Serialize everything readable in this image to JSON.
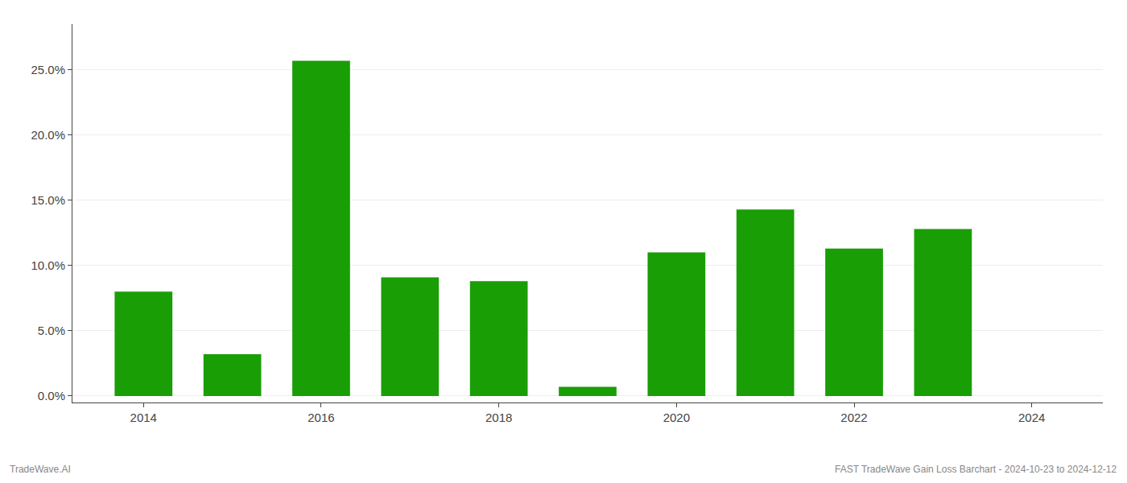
{
  "chart_data": {
    "type": "bar",
    "x": [
      2014,
      2015,
      2016,
      2017,
      2018,
      2019,
      2020,
      2021,
      2022,
      2023
    ],
    "values": [
      0.08,
      0.032,
      0.257,
      0.091,
      0.088,
      0.007,
      0.11,
      0.143,
      0.113,
      0.128
    ],
    "color": "#1a9e06",
    "xlim": [
      2013.2,
      2024.8
    ],
    "xticks": [
      2014,
      2016,
      2018,
      2020,
      2022,
      2024
    ],
    "ylim": [
      -0.005,
      0.285
    ],
    "yticks": [
      {
        "value": 0.0,
        "label": "0.0%"
      },
      {
        "value": 0.05,
        "label": "5.0%"
      },
      {
        "value": 0.1,
        "label": "10.0%"
      },
      {
        "value": 0.15,
        "label": "15.0%"
      },
      {
        "value": 0.2,
        "label": "20.0%"
      },
      {
        "value": 0.25,
        "label": "25.0%"
      }
    ],
    "grid": true,
    "annotations": [
      "TradeWave.AI",
      "FAST TradeWave Gain Loss Barchart - 2024-10-23 to 2024-12-12"
    ]
  }
}
